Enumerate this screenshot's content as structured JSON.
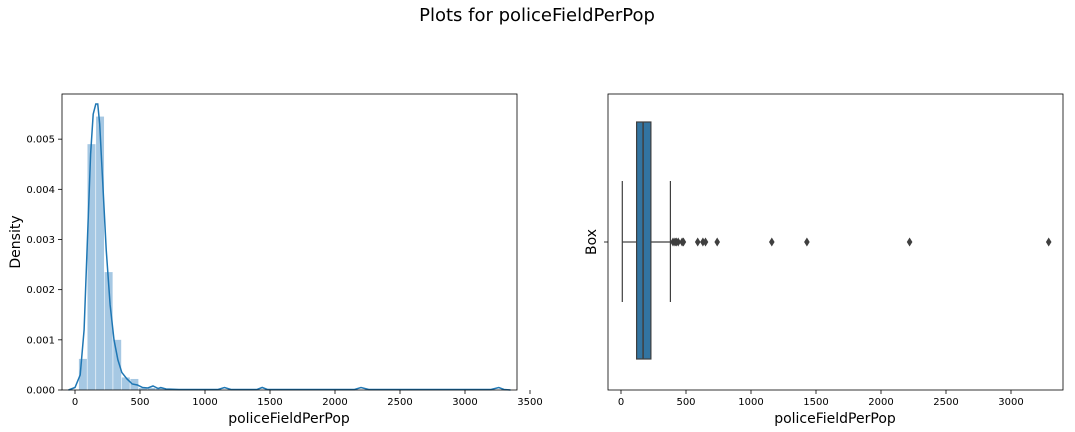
{
  "figure": {
    "title": "Plots for policeFieldPerPop"
  },
  "chart_data": [
    {
      "type": "histogram",
      "xlabel": "policeFieldPerPop",
      "ylabel": "Density",
      "xlim": [
        -100,
        3400
      ],
      "ylim": [
        0,
        0.0059
      ],
      "xticks": [
        "0",
        "500",
        "1000",
        "1500",
        "2000",
        "2500",
        "3000",
        "3500"
      ],
      "yticks": [
        "0.000",
        "0.001",
        "0.002",
        "0.003",
        "0.004",
        "0.005"
      ],
      "bar_color": "#a6c8e3",
      "line_color": "#1f77b4",
      "bins": [
        {
          "x0": 30,
          "x1": 96,
          "density": 0.00062
        },
        {
          "x0": 96,
          "x1": 162,
          "density": 0.0049
        },
        {
          "x0": 162,
          "x1": 228,
          "density": 0.00545
        },
        {
          "x0": 228,
          "x1": 294,
          "density": 0.00235
        },
        {
          "x0": 294,
          "x1": 360,
          "density": 0.001
        },
        {
          "x0": 360,
          "x1": 426,
          "density": 0.00025
        },
        {
          "x0": 426,
          "x1": 492,
          "density": 0.00022
        },
        {
          "x0": 492,
          "x1": 558,
          "density": 4e-05
        },
        {
          "x0": 558,
          "x1": 624,
          "density": 4e-05
        },
        {
          "x0": 624,
          "x1": 690,
          "density": 4e-05
        },
        {
          "x0": 690,
          "x1": 756,
          "density": 2e-05
        }
      ],
      "kde": {
        "x": [
          -50,
          0,
          40,
          70,
          100,
          120,
          140,
          160,
          175,
          190,
          210,
          240,
          270,
          300,
          330,
          360,
          400,
          440,
          480,
          520,
          560,
          600,
          640,
          660,
          700,
          800,
          900,
          1000,
          1100,
          1150,
          1200,
          1300,
          1400,
          1440,
          1480,
          1600,
          1800,
          2000,
          2150,
          2200,
          2260,
          2400,
          2800,
          3000,
          3200,
          3260,
          3300,
          3350
        ],
        "y": [
          0,
          5e-05,
          0.0003,
          0.0012,
          0.0033,
          0.0047,
          0.0055,
          0.0057,
          0.0057,
          0.0053,
          0.0043,
          0.0028,
          0.0017,
          0.001,
          0.0006,
          0.00035,
          0.00022,
          0.00012,
          0.0001,
          5e-05,
          4e-05,
          8e-05,
          3e-05,
          5e-05,
          2e-05,
          1e-05,
          1e-05,
          1e-05,
          1e-05,
          5e-05,
          1e-05,
          1e-05,
          1e-05,
          5e-05,
          1e-05,
          1e-05,
          1e-05,
          1e-05,
          1e-05,
          5e-05,
          1e-05,
          1e-05,
          1e-05,
          1e-05,
          1e-05,
          5e-05,
          1e-05,
          0
        ]
      }
    },
    {
      "type": "box",
      "xlabel": "policeFieldPerPop",
      "ylabel": "Box",
      "xlim": [
        -100,
        3400
      ],
      "xticks": [
        "0",
        "500",
        "1000",
        "1500",
        "2000",
        "2500",
        "3000"
      ],
      "box_color": "#3274a1",
      "stats": {
        "whisker_low": 10,
        "q1": 120,
        "median": 170,
        "q3": 230,
        "whisker_high": 380
      },
      "outliers": [
        400,
        415,
        425,
        440,
        470,
        480,
        590,
        630,
        650,
        740,
        1160,
        1430,
        2220,
        3290
      ]
    }
  ]
}
